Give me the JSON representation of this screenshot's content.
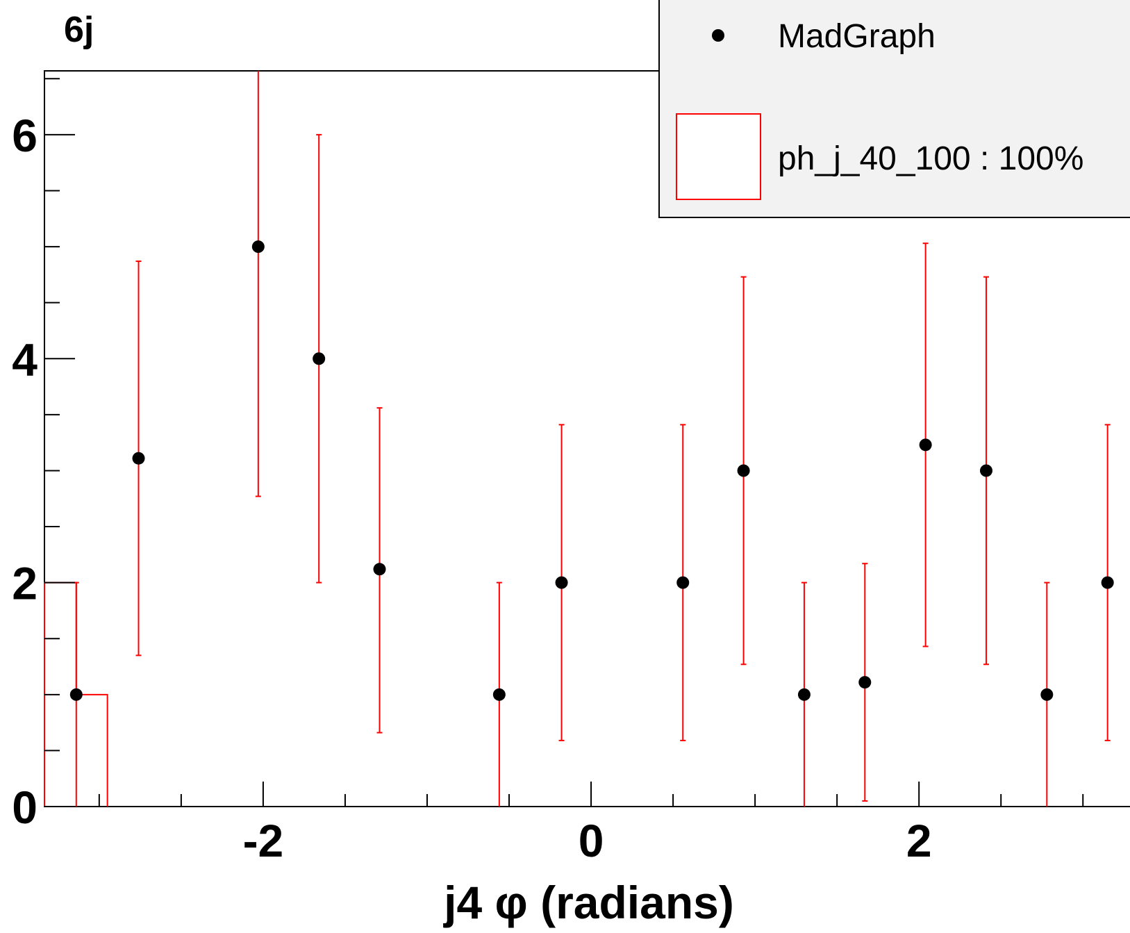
{
  "chart_data": {
    "type": "scatter",
    "title": "6j",
    "xlabel": "j4 φ (radians)",
    "ylabel": "",
    "xlim": [
      -3.334,
      3.287
    ],
    "ylim": [
      0,
      6.57
    ],
    "x_ticks": [
      -2,
      0,
      2
    ],
    "x_tick_labels": [
      "-2",
      "0",
      "2"
    ],
    "y_ticks": [
      0,
      2,
      4,
      6
    ],
    "y_tick_labels": [
      "0",
      "2",
      "4",
      "6"
    ],
    "grid": false,
    "legend_position": "top-right",
    "legend": {
      "entries": [
        {
          "label": "MadGraph",
          "marker": "dot"
        },
        {
          "label": "ph_j_40_100 : 100%",
          "marker": "box"
        }
      ]
    },
    "colors": {
      "points": "#000000",
      "error_bars": "#ff0000",
      "histogram": "#ff0000",
      "legend_bg": "#f2f2f2"
    },
    "series": [
      {
        "name": "MadGraph",
        "kind": "points-with-errors",
        "points": [
          {
            "x": -3.14,
            "y": 1.0,
            "low": 0.0,
            "high": 2.0
          },
          {
            "x": -2.76,
            "y": 3.11,
            "low": 1.35,
            "high": 4.87
          },
          {
            "x": -2.03,
            "y": 5.0,
            "low": 2.77,
            "high": 6.57
          },
          {
            "x": -1.66,
            "y": 4.0,
            "low": 2.0,
            "high": 6.0
          },
          {
            "x": -1.29,
            "y": 2.12,
            "low": 0.66,
            "high": 3.56
          },
          {
            "x": -0.56,
            "y": 1.0,
            "low": 0.0,
            "high": 2.0
          },
          {
            "x": -0.18,
            "y": 2.0,
            "low": 0.59,
            "high": 3.41
          },
          {
            "x": 0.56,
            "y": 2.0,
            "low": 0.59,
            "high": 3.41
          },
          {
            "x": 0.93,
            "y": 3.0,
            "low": 1.27,
            "high": 4.73
          },
          {
            "x": 1.3,
            "y": 1.0,
            "low": 0.0,
            "high": 2.0
          },
          {
            "x": 1.67,
            "y": 1.11,
            "low": 0.05,
            "high": 2.17
          },
          {
            "x": 2.04,
            "y": 3.23,
            "low": 1.43,
            "high": 5.03
          },
          {
            "x": 2.41,
            "y": 3.0,
            "low": 1.27,
            "high": 4.73
          },
          {
            "x": 2.78,
            "y": 1.0,
            "low": 0.0,
            "high": 2.0
          },
          {
            "x": 3.15,
            "y": 2.0,
            "low": 0.59,
            "high": 3.41
          }
        ]
      },
      {
        "name": "ph_j_40_100 : 100%",
        "kind": "histogram-step",
        "bins": [
          {
            "x_low": -3.334,
            "x_high": -3.14,
            "value": 2.0
          },
          {
            "x_low": -3.14,
            "x_high": -2.95,
            "value": 1.0
          }
        ]
      }
    ]
  }
}
